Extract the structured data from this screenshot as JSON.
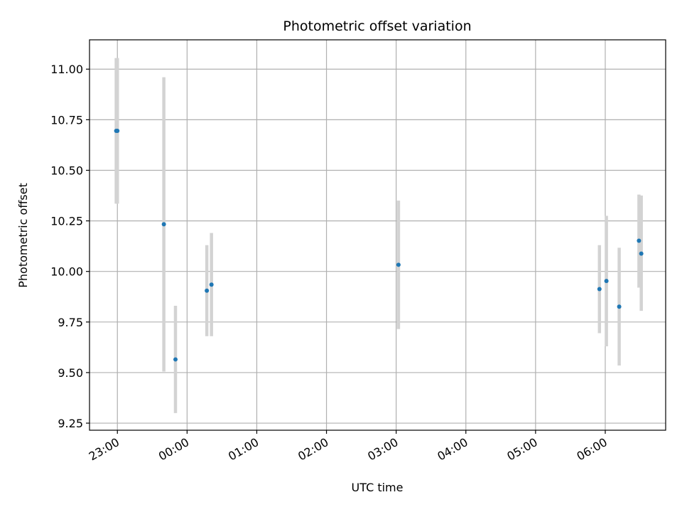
{
  "chart_data": {
    "type": "scatter",
    "title": "Photometric offset variation",
    "xlabel": "UTC time",
    "ylabel": "Photometric offset",
    "x_ticks": [
      "23:00",
      "00:00",
      "01:00",
      "02:00",
      "03:00",
      "04:00",
      "05:00",
      "06:00"
    ],
    "y_ticks": [
      "9.25",
      "9.50",
      "9.75",
      "10.00",
      "10.25",
      "10.50",
      "10.75",
      "11.00"
    ],
    "xlim": [
      "22:36",
      "06:52"
    ],
    "ylim": [
      9.215,
      11.145
    ],
    "grid": true,
    "legend": "none",
    "colors": {
      "point": "#1f77b4",
      "errorbar": "#d3d3d3",
      "grid": "#b0b0b0"
    },
    "points": [
      {
        "time": "22:59",
        "y": 10.695,
        "yerr_low": 10.335,
        "yerr_high": 11.055
      },
      {
        "time": "23:00",
        "y": 10.695,
        "yerr_low": 10.335,
        "yerr_high": 11.055
      },
      {
        "time": "23:40",
        "y": 10.233,
        "yerr_low": 9.505,
        "yerr_high": 10.96
      },
      {
        "time": "23:50",
        "y": 9.565,
        "yerr_low": 9.3,
        "yerr_high": 9.83
      },
      {
        "time": "00:17",
        "y": 9.905,
        "yerr_low": 9.68,
        "yerr_high": 10.13
      },
      {
        "time": "00:21",
        "y": 9.935,
        "yerr_low": 9.68,
        "yerr_high": 10.19
      },
      {
        "time": "03:02",
        "y": 10.033,
        "yerr_low": 9.715,
        "yerr_high": 10.35
      },
      {
        "time": "05:55",
        "y": 9.913,
        "yerr_low": 9.695,
        "yerr_high": 10.13
      },
      {
        "time": "06:01",
        "y": 9.953,
        "yerr_low": 9.63,
        "yerr_high": 10.275
      },
      {
        "time": "06:12",
        "y": 9.826,
        "yerr_low": 9.535,
        "yerr_high": 10.117
      },
      {
        "time": "06:29",
        "y": 10.152,
        "yerr_low": 9.92,
        "yerr_high": 10.38
      },
      {
        "time": "06:31",
        "y": 10.088,
        "yerr_low": 9.805,
        "yerr_high": 10.375
      }
    ]
  }
}
